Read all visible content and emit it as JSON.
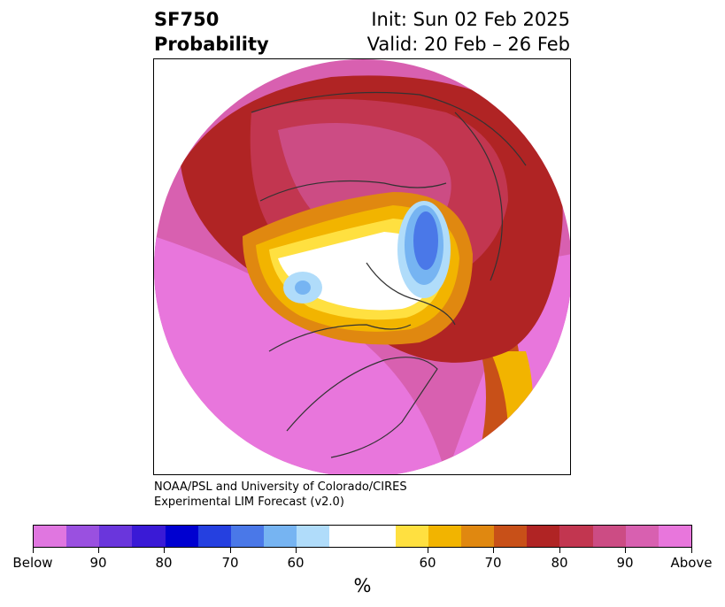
{
  "header": {
    "variable": "SF750",
    "product": "Probability",
    "init": "Init: Sun 02 Feb 2025",
    "valid": "Valid: 20 Feb – 26 Feb"
  },
  "credit": {
    "line1": "NOAA/PSL and University of Colorado/CIRES",
    "line2": "Experimental LIM Forecast (v2.0)"
  },
  "colorbar": {
    "unit": "%",
    "segments": [
      {
        "color": "#e076e0"
      },
      {
        "color": "#9a50e0"
      },
      {
        "color": "#6a36dc"
      },
      {
        "color": "#3a1ad6"
      },
      {
        "color": "#0000d0"
      },
      {
        "color": "#2540e0"
      },
      {
        "color": "#4a78e8"
      },
      {
        "color": "#76b4f2"
      },
      {
        "color": "#b0dcfa"
      },
      {
        "color": "#ffffff"
      },
      {
        "color": "#ffe040"
      },
      {
        "color": "#f2b400"
      },
      {
        "color": "#e08810"
      },
      {
        "color": "#c85018"
      },
      {
        "color": "#b02424"
      },
      {
        "color": "#c23650"
      },
      {
        "color": "#cc4c84"
      },
      {
        "color": "#d860b0"
      },
      {
        "color": "#e876dc"
      }
    ],
    "labels": [
      "Below",
      "90",
      "80",
      "70",
      "60",
      "60",
      "70",
      "80",
      "90",
      "Above"
    ]
  }
}
